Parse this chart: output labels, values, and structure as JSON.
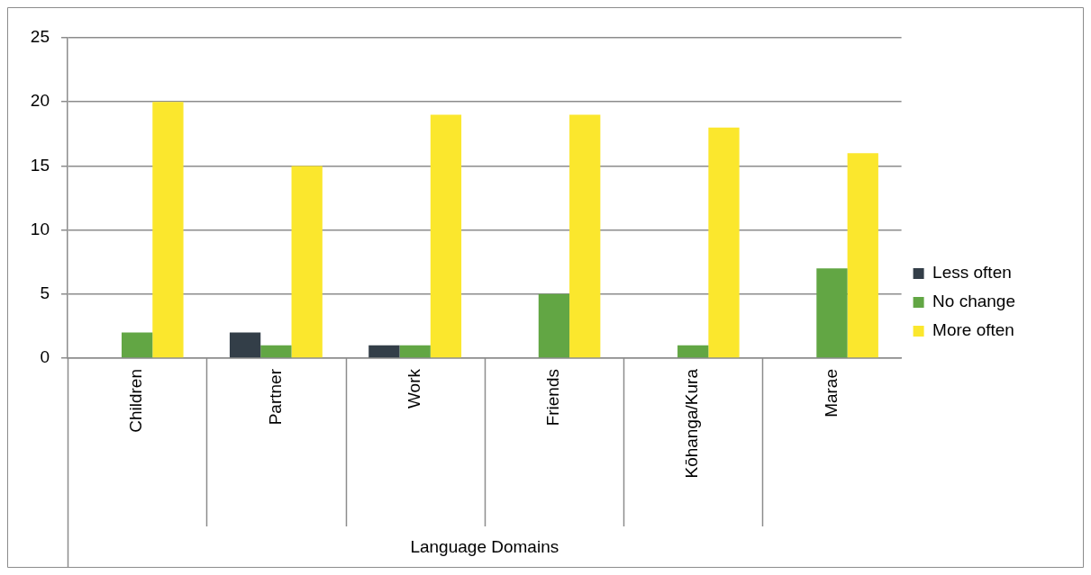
{
  "chart_data": {
    "type": "bar",
    "xlabel": "Language Domains",
    "categories": [
      "Children",
      "Partner",
      "Work",
      "Friends",
      "Kōhanga/Kura",
      "Marae"
    ],
    "series": [
      {
        "name": "Less often",
        "color": "#333e48",
        "values": [
          0,
          2,
          1,
          0,
          0,
          0
        ]
      },
      {
        "name": "No change",
        "color": "#62a644",
        "values": [
          2,
          1,
          1,
          5,
          1,
          7
        ]
      },
      {
        "name": "More often",
        "color": "#fbe72d",
        "values": [
          20,
          15,
          19,
          19,
          18,
          16
        ]
      }
    ],
    "ylim": [
      0,
      25
    ],
    "yticks": [
      0,
      5,
      10,
      15,
      20,
      25
    ],
    "grid": "y",
    "legend": "right"
  }
}
